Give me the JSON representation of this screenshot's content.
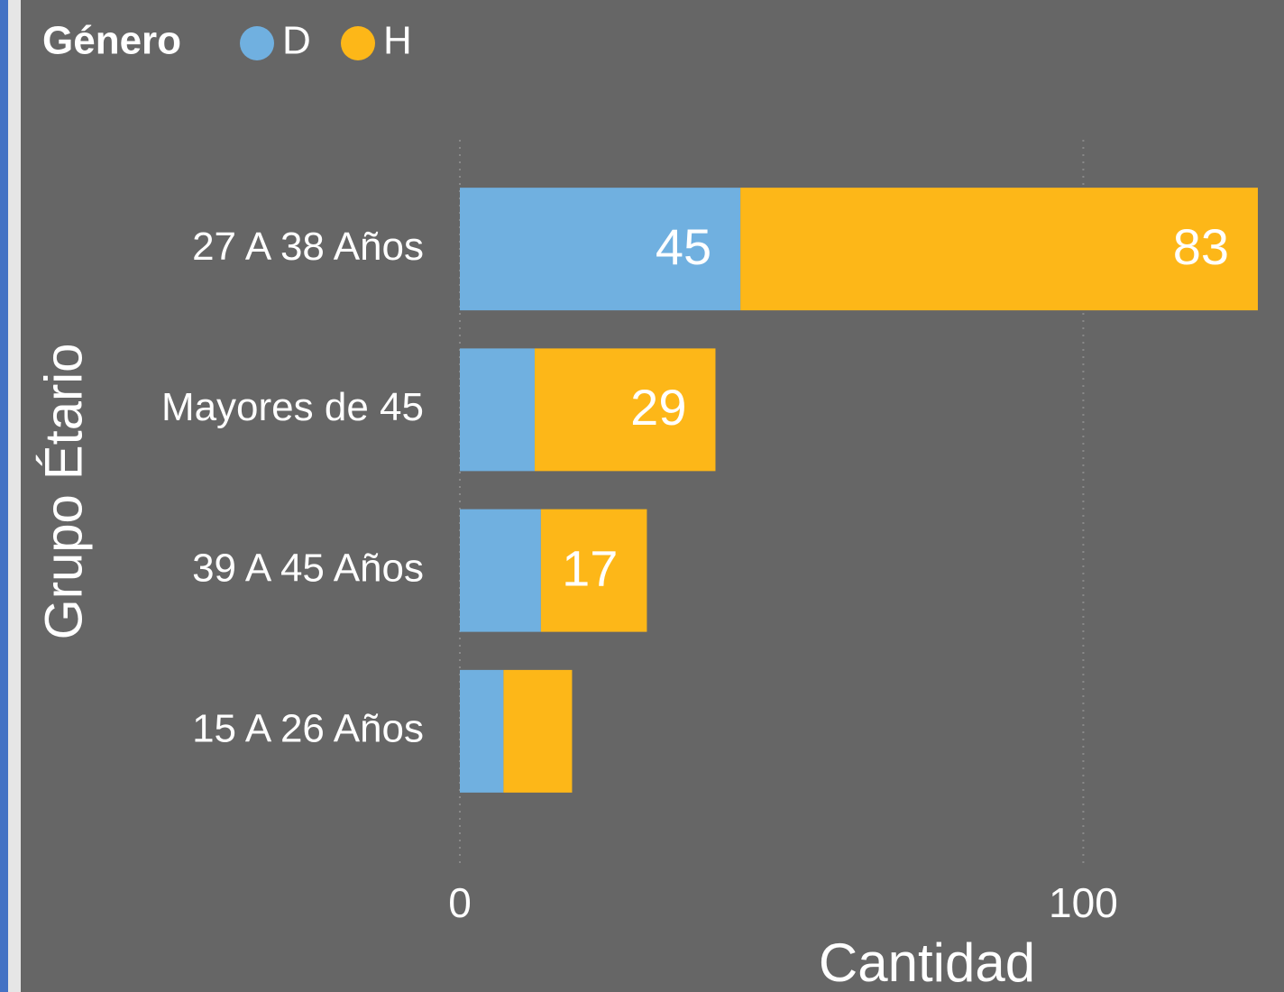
{
  "chart_data": {
    "type": "stacked-barh",
    "legend_title": "Género",
    "y_axis_label": "Grupo Étario",
    "x_axis_label": "Cantidad",
    "categories": [
      "27 A 38 Años",
      "Mayores de 45",
      "39 A 45 Años",
      "15 A 26 Años"
    ],
    "series": [
      {
        "name": "D",
        "color": "#70b0e0",
        "values": [
          45,
          12,
          13,
          7
        ]
      },
      {
        "name": "H",
        "color": "#fdb718",
        "values": [
          83,
          29,
          17,
          11
        ]
      }
    ],
    "xlim": [
      0,
      128
    ],
    "xticks": [
      0,
      100
    ],
    "grid": true,
    "legend": "top-left"
  }
}
